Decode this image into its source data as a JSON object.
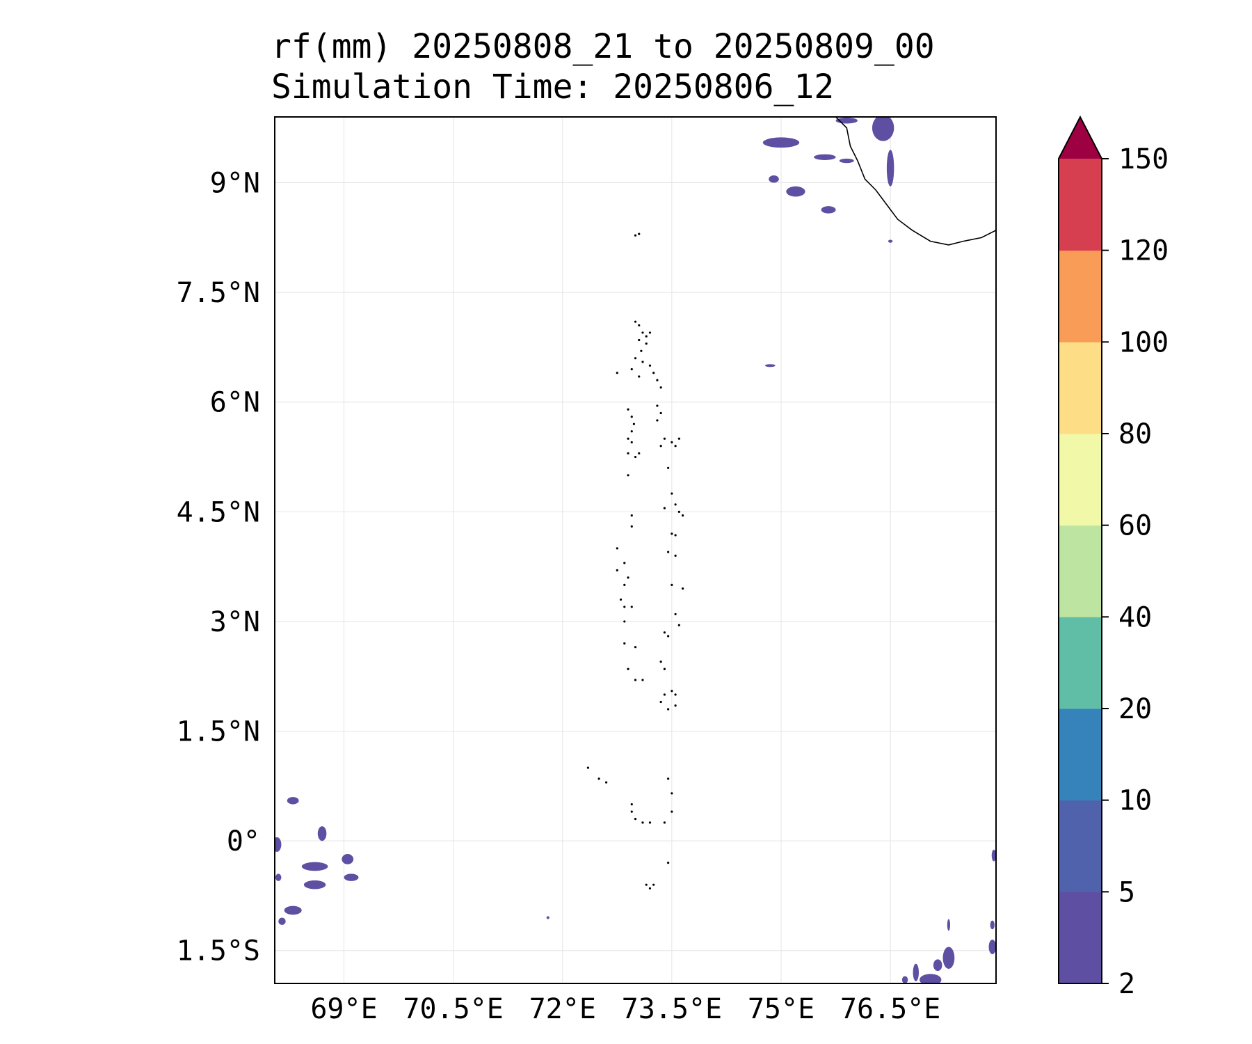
{
  "title": {
    "line1": "rf(mm) 20250808_21 to 20250809_00",
    "line2": "Simulation Time: 20250806_12"
  },
  "map": {
    "extent": {
      "lon_min": 68.05,
      "lon_max": 77.95,
      "lat_min": -1.95,
      "lat_max": 9.9
    },
    "lon_ticks": [
      69,
      70.5,
      72,
      73.5,
      75,
      76.5
    ],
    "lon_tick_labels": [
      "69°E",
      "70.5°E",
      "72°E",
      "73.5°E",
      "75°E",
      "76.5°E"
    ],
    "lat_ticks": [
      9,
      7.5,
      6,
      4.5,
      3,
      1.5,
      0,
      -1.5
    ],
    "lat_tick_labels": [
      "9°N",
      "7.5°N",
      "6°N",
      "4.5°N",
      "3°N",
      "1.5°N",
      "0°",
      "1.5°S"
    ],
    "grid": true,
    "rain_color": "#5e4fa2",
    "rain_patches": [
      {
        "lon": 75.0,
        "lat": 9.55,
        "rx": 0.25,
        "ry": 0.07
      },
      {
        "lon": 75.6,
        "lat": 9.35,
        "rx": 0.15,
        "ry": 0.04
      },
      {
        "lon": 75.9,
        "lat": 9.3,
        "rx": 0.1,
        "ry": 0.03
      },
      {
        "lon": 74.9,
        "lat": 9.05,
        "rx": 0.07,
        "ry": 0.05
      },
      {
        "lon": 75.2,
        "lat": 8.88,
        "rx": 0.13,
        "ry": 0.07
      },
      {
        "lon": 75.65,
        "lat": 8.63,
        "rx": 0.1,
        "ry": 0.05
      },
      {
        "lon": 76.4,
        "lat": 9.75,
        "rx": 0.15,
        "ry": 0.18
      },
      {
        "lon": 75.9,
        "lat": 9.85,
        "rx": 0.15,
        "ry": 0.04
      },
      {
        "lon": 76.5,
        "lat": 9.2,
        "rx": 0.05,
        "ry": 0.25
      },
      {
        "lon": 74.85,
        "lat": 6.5,
        "rx": 0.07,
        "ry": 0.015
      },
      {
        "lon": 68.3,
        "lat": 0.55,
        "rx": 0.08,
        "ry": 0.05
      },
      {
        "lon": 68.7,
        "lat": 0.1,
        "rx": 0.06,
        "ry": 0.1
      },
      {
        "lon": 68.08,
        "lat": -0.05,
        "rx": 0.06,
        "ry": 0.1
      },
      {
        "lon": 68.6,
        "lat": -0.35,
        "rx": 0.18,
        "ry": 0.06
      },
      {
        "lon": 69.05,
        "lat": -0.25,
        "rx": 0.08,
        "ry": 0.07
      },
      {
        "lon": 68.6,
        "lat": -0.6,
        "rx": 0.15,
        "ry": 0.06
      },
      {
        "lon": 69.1,
        "lat": -0.5,
        "rx": 0.1,
        "ry": 0.05
      },
      {
        "lon": 68.3,
        "lat": -0.95,
        "rx": 0.12,
        "ry": 0.06
      },
      {
        "lon": 68.15,
        "lat": -1.1,
        "rx": 0.05,
        "ry": 0.05
      },
      {
        "lon": 68.1,
        "lat": -0.5,
        "rx": 0.04,
        "ry": 0.05
      },
      {
        "lon": 77.3,
        "lat": -1.6,
        "rx": 0.08,
        "ry": 0.15
      },
      {
        "lon": 77.05,
        "lat": -1.9,
        "rx": 0.15,
        "ry": 0.08
      },
      {
        "lon": 77.15,
        "lat": -1.7,
        "rx": 0.06,
        "ry": 0.08
      },
      {
        "lon": 76.85,
        "lat": -1.8,
        "rx": 0.04,
        "ry": 0.12
      },
      {
        "lon": 76.7,
        "lat": -1.9,
        "rx": 0.04,
        "ry": 0.05
      },
      {
        "lon": 77.9,
        "lat": -1.45,
        "rx": 0.05,
        "ry": 0.1
      },
      {
        "lon": 77.92,
        "lat": -0.2,
        "rx": 0.03,
        "ry": 0.08
      },
      {
        "lon": 77.9,
        "lat": -1.15,
        "rx": 0.03,
        "ry": 0.06
      },
      {
        "lon": 77.3,
        "lat": -1.15,
        "rx": 0.02,
        "ry": 0.08
      },
      {
        "lon": 71.8,
        "lat": -1.05,
        "rx": 0.02,
        "ry": 0.02
      },
      {
        "lon": 76.5,
        "lat": 8.2,
        "rx": 0.03,
        "ry": 0.02
      }
    ],
    "coastline": [
      [
        75.75,
        9.9
      ],
      [
        75.9,
        9.75
      ],
      [
        75.95,
        9.5
      ],
      [
        76.05,
        9.3
      ],
      [
        76.15,
        9.05
      ],
      [
        76.3,
        8.9
      ],
      [
        76.45,
        8.7
      ],
      [
        76.6,
        8.5
      ],
      [
        76.8,
        8.35
      ],
      [
        77.05,
        8.2
      ],
      [
        77.3,
        8.15
      ],
      [
        77.5,
        8.2
      ],
      [
        77.75,
        8.25
      ],
      [
        77.95,
        8.35
      ]
    ],
    "islands": [
      [
        73.05,
        8.3
      ],
      [
        73.0,
        8.28
      ],
      [
        73.0,
        7.1
      ],
      [
        73.05,
        7.05
      ],
      [
        73.1,
        6.95
      ],
      [
        73.05,
        6.85
      ],
      [
        73.15,
        6.9
      ],
      [
        73.2,
        6.95
      ],
      [
        73.15,
        6.8
      ],
      [
        73.08,
        6.7
      ],
      [
        73.0,
        6.6
      ],
      [
        73.1,
        6.55
      ],
      [
        73.2,
        6.5
      ],
      [
        73.25,
        6.4
      ],
      [
        73.3,
        6.3
      ],
      [
        73.35,
        6.2
      ],
      [
        72.75,
        6.4
      ],
      [
        72.95,
        6.45
      ],
      [
        73.05,
        6.35
      ],
      [
        72.9,
        5.9
      ],
      [
        72.95,
        5.8
      ],
      [
        72.98,
        5.7
      ],
      [
        72.95,
        5.6
      ],
      [
        72.9,
        5.5
      ],
      [
        72.95,
        5.45
      ],
      [
        73.3,
        5.95
      ],
      [
        73.35,
        5.85
      ],
      [
        73.3,
        5.75
      ],
      [
        73.4,
        5.5
      ],
      [
        73.5,
        5.45
      ],
      [
        73.6,
        5.5
      ],
      [
        73.55,
        5.4
      ],
      [
        73.35,
        5.4
      ],
      [
        72.9,
        5.3
      ],
      [
        73.0,
        5.25
      ],
      [
        73.05,
        5.3
      ],
      [
        72.9,
        5.0
      ],
      [
        73.45,
        5.1
      ],
      [
        73.5,
        4.75
      ],
      [
        73.55,
        4.6
      ],
      [
        73.4,
        4.55
      ],
      [
        73.6,
        4.5
      ],
      [
        73.65,
        4.45
      ],
      [
        72.95,
        4.45
      ],
      [
        72.95,
        4.3
      ],
      [
        73.5,
        4.2
      ],
      [
        73.55,
        4.18
      ],
      [
        73.45,
        3.95
      ],
      [
        73.55,
        3.9
      ],
      [
        72.75,
        4.0
      ],
      [
        72.75,
        3.7
      ],
      [
        72.85,
        3.8
      ],
      [
        72.9,
        3.6
      ],
      [
        72.85,
        3.5
      ],
      [
        73.5,
        3.5
      ],
      [
        73.65,
        3.45
      ],
      [
        72.8,
        3.3
      ],
      [
        72.85,
        3.2
      ],
      [
        72.95,
        3.2
      ],
      [
        72.85,
        3.0
      ],
      [
        73.55,
        3.1
      ],
      [
        73.6,
        2.95
      ],
      [
        73.45,
        2.8
      ],
      [
        73.4,
        2.85
      ],
      [
        72.85,
        2.7
      ],
      [
        73.0,
        2.65
      ],
      [
        73.35,
        2.45
      ],
      [
        73.4,
        2.35
      ],
      [
        72.9,
        2.35
      ],
      [
        73.0,
        2.2
      ],
      [
        73.1,
        2.2
      ],
      [
        73.5,
        2.05
      ],
      [
        73.55,
        2.0
      ],
      [
        73.55,
        1.85
      ],
      [
        73.45,
        1.8
      ],
      [
        73.35,
        1.9
      ],
      [
        73.4,
        2.0
      ],
      [
        72.35,
        1.0
      ],
      [
        72.5,
        0.85
      ],
      [
        72.6,
        0.8
      ],
      [
        73.45,
        0.85
      ],
      [
        73.5,
        0.65
      ],
      [
        73.5,
        0.4
      ],
      [
        73.4,
        0.25
      ],
      [
        73.2,
        0.25
      ],
      [
        73.1,
        0.25
      ],
      [
        73.0,
        0.3
      ],
      [
        72.95,
        0.4
      ],
      [
        72.95,
        0.5
      ],
      [
        73.45,
        -0.3
      ],
      [
        73.15,
        -0.6
      ],
      [
        73.2,
        -0.65
      ],
      [
        73.25,
        -0.6
      ]
    ]
  },
  "colorbar": {
    "boundaries": [
      2,
      5,
      10,
      20,
      40,
      60,
      80,
      100,
      120,
      150
    ],
    "tick_labels": [
      "2",
      "5",
      "10",
      "20",
      "40",
      "60",
      "80",
      "100",
      "120",
      "150"
    ],
    "colors": [
      "#5e4fa2",
      "#4f62ab",
      "#3682ba",
      "#61bea6",
      "#bde4a0",
      "#f1f9a9",
      "#fddd86",
      "#f99c57",
      "#d63f4f"
    ],
    "extend_color": "#9e0142"
  }
}
